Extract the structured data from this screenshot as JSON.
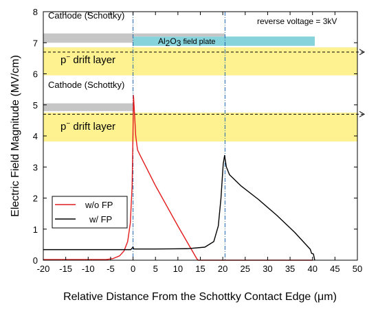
{
  "chart_data": {
    "type": "line",
    "xlabel": "Relative Distance From the Schottky Contact Edge (μm)",
    "ylabel": "Electric Field Magnitude (MV/cm)",
    "xlim": [
      -20,
      50
    ],
    "ylim": [
      0,
      8
    ],
    "xticks": [
      -20,
      -15,
      -10,
      -5,
      0,
      5,
      10,
      15,
      20,
      25,
      30,
      35,
      40,
      45,
      50
    ],
    "yticks": [
      0,
      1,
      2,
      3,
      4,
      5,
      6,
      7,
      8
    ],
    "grid": false,
    "legend": "bottom-left",
    "series": [
      {
        "name": "w/o FP",
        "color": "#e41a1c",
        "points": [
          [
            -20,
            0.02
          ],
          [
            -6,
            0.02
          ],
          [
            -4.5,
            0.05
          ],
          [
            -3,
            0.14
          ],
          [
            -2,
            0.3
          ],
          [
            -1.2,
            0.6
          ],
          [
            -0.6,
            1.2
          ],
          [
            -0.2,
            2.4
          ],
          [
            0,
            4.2
          ],
          [
            0.1,
            5.3
          ],
          [
            0.3,
            4.8
          ],
          [
            0.6,
            4.0
          ],
          [
            1.0,
            3.55
          ],
          [
            1.5,
            3.4
          ],
          [
            5,
            2.4
          ],
          [
            10,
            1.1
          ],
          [
            14.2,
            0.05
          ],
          [
            14.5,
            0.0
          ],
          [
            40,
            0.0
          ]
        ]
      },
      {
        "name": "w/ FP",
        "color": "#000000",
        "points": [
          [
            -20,
            0.34
          ],
          [
            -0.5,
            0.34
          ],
          [
            0,
            0.42
          ],
          [
            0.2,
            0.36
          ],
          [
            5,
            0.36
          ],
          [
            12,
            0.37
          ],
          [
            16,
            0.42
          ],
          [
            18,
            0.6
          ],
          [
            19,
            1.1
          ],
          [
            19.6,
            2.0
          ],
          [
            20.1,
            3.1
          ],
          [
            20.4,
            3.37
          ],
          [
            20.8,
            3.0
          ],
          [
            21.5,
            2.75
          ],
          [
            24,
            2.4
          ],
          [
            28,
            1.95
          ],
          [
            32,
            1.45
          ],
          [
            36,
            0.9
          ],
          [
            39.5,
            0.35
          ],
          [
            39.8,
            0.22
          ],
          [
            40.2,
            0.2
          ],
          [
            40.5,
            0.0
          ]
        ]
      }
    ],
    "guides": [
      {
        "axis": "x",
        "value": 0,
        "color": "#2166ac"
      },
      {
        "axis": "x",
        "value": 20.5,
        "color": "#2166ac"
      }
    ],
    "annotations": {
      "reverse_voltage": "reverse voltage = 3kV",
      "cathode_top": "Cathode (Schottky)",
      "cathode_bottom": "Cathode (Schottky)",
      "field_plate_al": "Al",
      "field_plate_sub2": "2",
      "field_plate_o": "O",
      "field_plate_sub3": "3",
      "field_plate_rest": " field plate",
      "drift_p": "p",
      "drift_sup": "−",
      "drift_rest": " drift layer"
    },
    "colors": {
      "drift_layer": "#fdf28f",
      "cathode": "#c6c6c6",
      "field_plate": "#87d3dc",
      "guide": "#2166ac",
      "cutline": "#000000"
    },
    "device_layers": {
      "top_panel": {
        "cathode_y": [
          7.0,
          7.3
        ],
        "cathode_x": [
          -20,
          0
        ],
        "field_plate_y": [
          6.9,
          7.2
        ],
        "field_plate_x": [
          0,
          40.5
        ],
        "cathode_upper_y": [
          7.2,
          7.3
        ],
        "cathode_upper_x": [
          0,
          20.5
        ],
        "drift_y": [
          5.95,
          6.85
        ],
        "cutline_y": 6.7
      },
      "bottom_panel": {
        "cathode_y": [
          4.8,
          5.05
        ],
        "cathode_x": [
          -20,
          0
        ],
        "drift_y": [
          3.82,
          4.75
        ],
        "cutline_y": 4.7
      }
    }
  }
}
